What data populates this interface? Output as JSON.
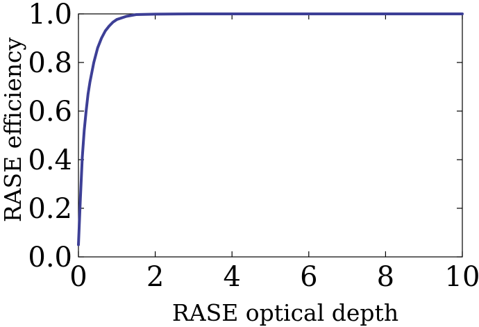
{
  "chart_data": {
    "type": "line",
    "title": "",
    "xlabel": "RASE optical depth",
    "ylabel": "RASE efficiency",
    "xlim": [
      0,
      10
    ],
    "ylim": [
      0,
      1.0
    ],
    "x_ticks": [
      "0",
      "2",
      "4",
      "6",
      "8",
      "10"
    ],
    "y_ticks": [
      "0.0",
      "0.2",
      "0.4",
      "0.6",
      "0.8",
      "1.0"
    ],
    "grid": false,
    "legend": "none",
    "line_color": "#3d3f96",
    "series": [
      {
        "x": [
          0.0,
          0.05,
          0.1,
          0.15,
          0.2,
          0.25,
          0.3,
          0.4,
          0.5,
          0.6,
          0.7,
          0.8,
          0.9,
          1.0,
          1.25,
          1.5,
          2.0,
          3.0,
          4.0,
          6.0,
          8.0,
          10.0
        ],
        "values": [
          0.05,
          0.24,
          0.41,
          0.52,
          0.6,
          0.67,
          0.72,
          0.8,
          0.86,
          0.9,
          0.93,
          0.95,
          0.966,
          0.977,
          0.99,
          0.997,
          0.999,
          1.0,
          1.0,
          1.0,
          1.0,
          1.0
        ]
      }
    ]
  }
}
